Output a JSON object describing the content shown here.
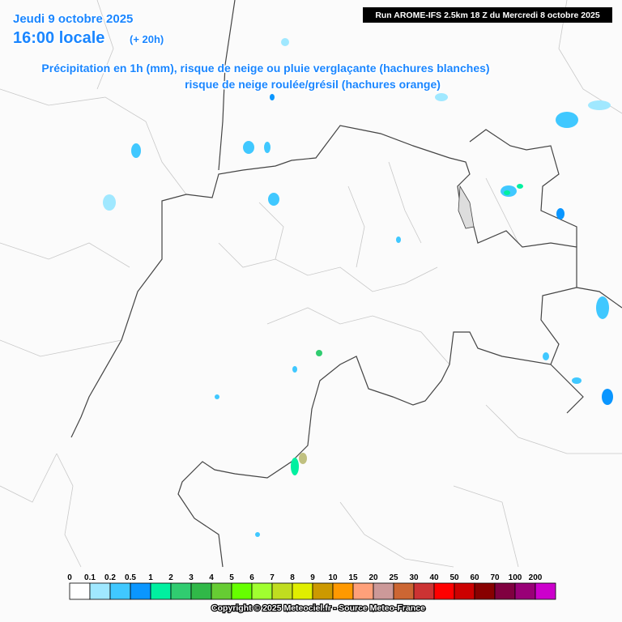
{
  "header": {
    "date": "Jeudi 9 octobre 2025",
    "time": "16:00 locale",
    "lead": "(+ 20h)",
    "title_line1": "Précipitation en 1h (mm), risque de neige ou pluie verglaçante (hachures blanches)",
    "title_line2": "risque de neige roulée/grésil (hachures orange)",
    "run": "Run AROME-IFS 2.5km 18 Z du Mercredi 8 octobre 2025"
  },
  "legend": {
    "items": [
      {
        "label": "0",
        "color": "#ffffff"
      },
      {
        "label": "0.1",
        "color": "#a0e8ff"
      },
      {
        "label": "0.2",
        "color": "#40c8ff"
      },
      {
        "label": "0.5",
        "color": "#0a96ff"
      },
      {
        "label": "1",
        "color": "#00f0a0"
      },
      {
        "label": "2",
        "color": "#30cc70"
      },
      {
        "label": "3",
        "color": "#30b848"
      },
      {
        "label": "4",
        "color": "#66cc33"
      },
      {
        "label": "5",
        "color": "#66ff00"
      },
      {
        "label": "6",
        "color": "#a0ff30"
      },
      {
        "label": "7",
        "color": "#c0dd20"
      },
      {
        "label": "8",
        "color": "#e0ee00"
      },
      {
        "label": "9",
        "color": "#cc9900"
      },
      {
        "label": "10",
        "color": "#ff9900"
      },
      {
        "label": "15",
        "color": "#ffa07a"
      },
      {
        "label": "20",
        "color": "#cc9999"
      },
      {
        "label": "25",
        "color": "#cc6633"
      },
      {
        "label": "30",
        "color": "#cc3333"
      },
      {
        "label": "40",
        "color": "#ff0000"
      },
      {
        "label": "50",
        "color": "#cc0000"
      },
      {
        "label": "60",
        "color": "#880000"
      },
      {
        "label": "70",
        "color": "#800040"
      },
      {
        "label": "100",
        "color": "#990077"
      },
      {
        "label": "200",
        "color": "#cc00cc"
      }
    ]
  },
  "footer": {
    "copyright": "Copyright © 2025 Meteociel.fr - Source Meteo-France"
  }
}
